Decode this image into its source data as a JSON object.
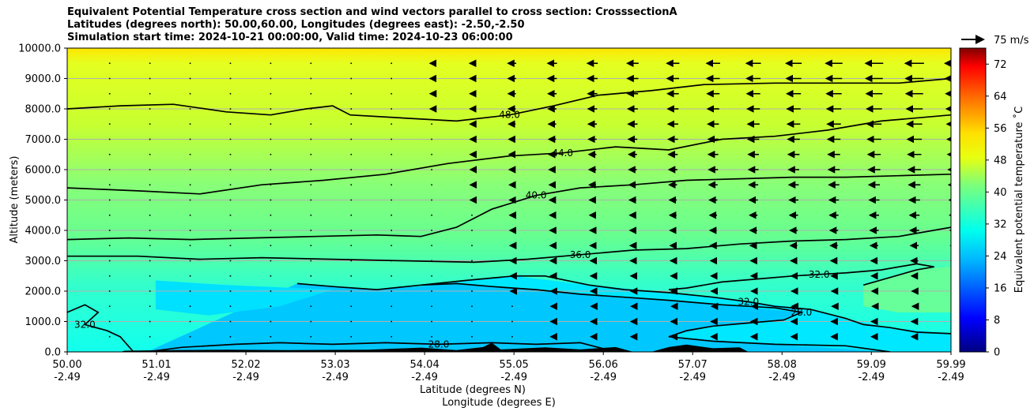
{
  "chart_data": {
    "type": "contour",
    "title_lines": [
      "Equivalent Potential Temperature cross section and wind vectors parallel to cross section: CrosssectionA",
      "Latitudes (degrees north): 50.00,60.00, Longitudes (degrees east): -2.50,-2.50",
      "Simulation start time: 2024-10-21 00:00:00, Valid time: 2024-10-23 06:00:00"
    ],
    "xlabel_1": "Latitude (degrees N)",
    "xlabel_2": "Longitude (degrees E)",
    "ylabel": "Altitude (meters)",
    "x_ticks": [
      {
        "lat": "50.00",
        "lon": "-2.49"
      },
      {
        "lat": "51.01",
        "lon": "-2.49"
      },
      {
        "lat": "52.02",
        "lon": "-2.49"
      },
      {
        "lat": "53.03",
        "lon": "-2.49"
      },
      {
        "lat": "54.04",
        "lon": "-2.49"
      },
      {
        "lat": "55.05",
        "lon": "-2.49"
      },
      {
        "lat": "56.06",
        "lon": "-2.49"
      },
      {
        "lat": "57.07",
        "lon": "-2.49"
      },
      {
        "lat": "58.08",
        "lon": "-2.49"
      },
      {
        "lat": "59.09",
        "lon": "-2.49"
      },
      {
        "lat": "59.99",
        "lon": "-2.49"
      }
    ],
    "x_range": [
      50.0,
      59.99
    ],
    "ylim": [
      0,
      10000
    ],
    "y_ticks": [
      "0.0",
      "1000.0",
      "2000.0",
      "3000.0",
      "4000.0",
      "5000.0",
      "6000.0",
      "7000.0",
      "8000.0",
      "9000.0",
      "10000.0"
    ],
    "grid": "horizontal",
    "colorbar": {
      "label": "Equivalent potential temperature $^\\circ$C",
      "label_display": "Equivalent potential temperature ˚C",
      "ticks": [
        "0",
        "8",
        "16",
        "24",
        "32",
        "40",
        "48",
        "56",
        "64",
        "72"
      ],
      "range": [
        0,
        76
      ]
    },
    "quiver_key": {
      "label": "75 m/s"
    },
    "contours": [
      {
        "level": 28,
        "label": "28.0",
        "points": [
          [
            52.6,
            2250
          ],
          [
            53.0,
            2150
          ],
          [
            53.5,
            2050
          ],
          [
            54.0,
            2200
          ],
          [
            54.4,
            2250
          ],
          [
            54.8,
            2150
          ],
          [
            55.3,
            2050
          ],
          [
            55.8,
            1900
          ],
          [
            56.3,
            1800
          ],
          [
            56.8,
            1700
          ],
          [
            57.4,
            1550
          ],
          [
            58.0,
            1450
          ],
          [
            58.3,
            1300
          ],
          [
            58.1,
            1050
          ],
          [
            57.7,
            950
          ],
          [
            57.3,
            850
          ],
          [
            57.0,
            700
          ],
          [
            56.8,
            500
          ],
          [
            57.3,
            350
          ],
          [
            58.0,
            250
          ],
          [
            58.8,
            200
          ],
          [
            59.3,
            0
          ]
        ]
      },
      {
        "level": 28,
        "label": "28.0",
        "points": [
          [
            50.9,
            0
          ],
          [
            51.3,
            150
          ],
          [
            51.9,
            250
          ],
          [
            52.4,
            300
          ],
          [
            53.0,
            250
          ],
          [
            53.6,
            300
          ],
          [
            54.2,
            250
          ],
          [
            54.8,
            300
          ],
          [
            55.3,
            250
          ],
          [
            55.8,
            300
          ],
          [
            56.2,
            0
          ]
        ]
      },
      {
        "level": 32,
        "label": "32.0",
        "points": [
          [
            50.0,
            1300
          ],
          [
            50.2,
            1550
          ],
          [
            50.35,
            1300
          ],
          [
            50.2,
            900
          ],
          [
            50.45,
            700
          ],
          [
            50.6,
            500
          ],
          [
            50.75,
            0
          ]
        ]
      },
      {
        "level": 32,
        "label": "32.0",
        "points": [
          [
            54.0,
            2200
          ],
          [
            54.5,
            2350
          ],
          [
            55.05,
            2500
          ],
          [
            55.4,
            2500
          ],
          [
            55.9,
            2200
          ],
          [
            56.3,
            2050
          ],
          [
            56.8,
            1950
          ],
          [
            57.3,
            1800
          ],
          [
            57.7,
            1650
          ],
          [
            58.0,
            1500
          ],
          [
            58.4,
            1400
          ],
          [
            58.8,
            1100
          ],
          [
            59.0,
            900
          ],
          [
            59.3,
            800
          ],
          [
            59.6,
            650
          ],
          [
            59.99,
            600
          ]
        ]
      },
      {
        "level": 32,
        "label": "32.0",
        "points": [
          [
            59.0,
            2200
          ],
          [
            59.3,
            2450
          ],
          [
            59.6,
            2700
          ],
          [
            59.8,
            2800
          ],
          [
            59.6,
            2900
          ],
          [
            59.2,
            2700
          ],
          [
            58.8,
            2600
          ],
          [
            58.5,
            2550
          ],
          [
            58.2,
            2500
          ],
          [
            57.8,
            2400
          ],
          [
            57.4,
            2300
          ],
          [
            57.0,
            2100
          ],
          [
            56.8,
            2050
          ]
        ]
      },
      {
        "level": 36,
        "label": "36.0",
        "points": [
          [
            50.0,
            3150
          ],
          [
            50.8,
            3150
          ],
          [
            51.5,
            3050
          ],
          [
            52.2,
            3100
          ],
          [
            53.0,
            3050
          ],
          [
            53.8,
            3000
          ],
          [
            54.6,
            2950
          ],
          [
            55.2,
            3050
          ],
          [
            55.8,
            3200
          ],
          [
            56.4,
            3350
          ],
          [
            57.0,
            3400
          ],
          [
            57.6,
            3550
          ],
          [
            58.2,
            3650
          ],
          [
            58.8,
            3700
          ],
          [
            59.4,
            3800
          ],
          [
            59.99,
            4100
          ]
        ]
      },
      {
        "level": 40,
        "label": "40.0",
        "points": [
          [
            50.0,
            3700
          ],
          [
            50.7,
            3750
          ],
          [
            51.4,
            3700
          ],
          [
            52.1,
            3750
          ],
          [
            52.8,
            3800
          ],
          [
            53.5,
            3850
          ],
          [
            54.0,
            3800
          ],
          [
            54.4,
            4100
          ],
          [
            54.8,
            4700
          ],
          [
            55.3,
            5150
          ],
          [
            55.8,
            5400
          ],
          [
            56.4,
            5500
          ],
          [
            57.0,
            5650
          ],
          [
            57.6,
            5700
          ],
          [
            58.2,
            5750
          ],
          [
            58.8,
            5750
          ],
          [
            59.4,
            5800
          ],
          [
            59.99,
            5850
          ]
        ]
      },
      {
        "level": 44,
        "label": "44.0",
        "points": [
          [
            50.0,
            5400
          ],
          [
            50.8,
            5300
          ],
          [
            51.5,
            5200
          ],
          [
            52.2,
            5500
          ],
          [
            52.9,
            5650
          ],
          [
            53.6,
            5850
          ],
          [
            54.3,
            6200
          ],
          [
            55.0,
            6450
          ],
          [
            55.6,
            6550
          ],
          [
            56.2,
            6750
          ],
          [
            56.8,
            6650
          ],
          [
            57.4,
            7000
          ],
          [
            58.0,
            7100
          ],
          [
            58.6,
            7300
          ],
          [
            59.2,
            7600
          ],
          [
            59.99,
            7800
          ]
        ]
      },
      {
        "level": 48,
        "label": "48.0",
        "points": [
          [
            50.0,
            8000
          ],
          [
            50.6,
            8100
          ],
          [
            51.2,
            8150
          ],
          [
            51.8,
            7900
          ],
          [
            52.3,
            7800
          ],
          [
            52.7,
            8000
          ],
          [
            53.0,
            8100
          ],
          [
            53.2,
            7800
          ],
          [
            53.8,
            7700
          ],
          [
            54.4,
            7600
          ],
          [
            55.0,
            7800
          ],
          [
            55.5,
            8100
          ],
          [
            56.0,
            8450
          ],
          [
            56.6,
            8600
          ],
          [
            57.2,
            8800
          ],
          [
            58.0,
            8850
          ],
          [
            58.8,
            8850
          ],
          [
            59.4,
            8850
          ],
          [
            59.99,
            9000
          ]
        ]
      }
    ]
  }
}
